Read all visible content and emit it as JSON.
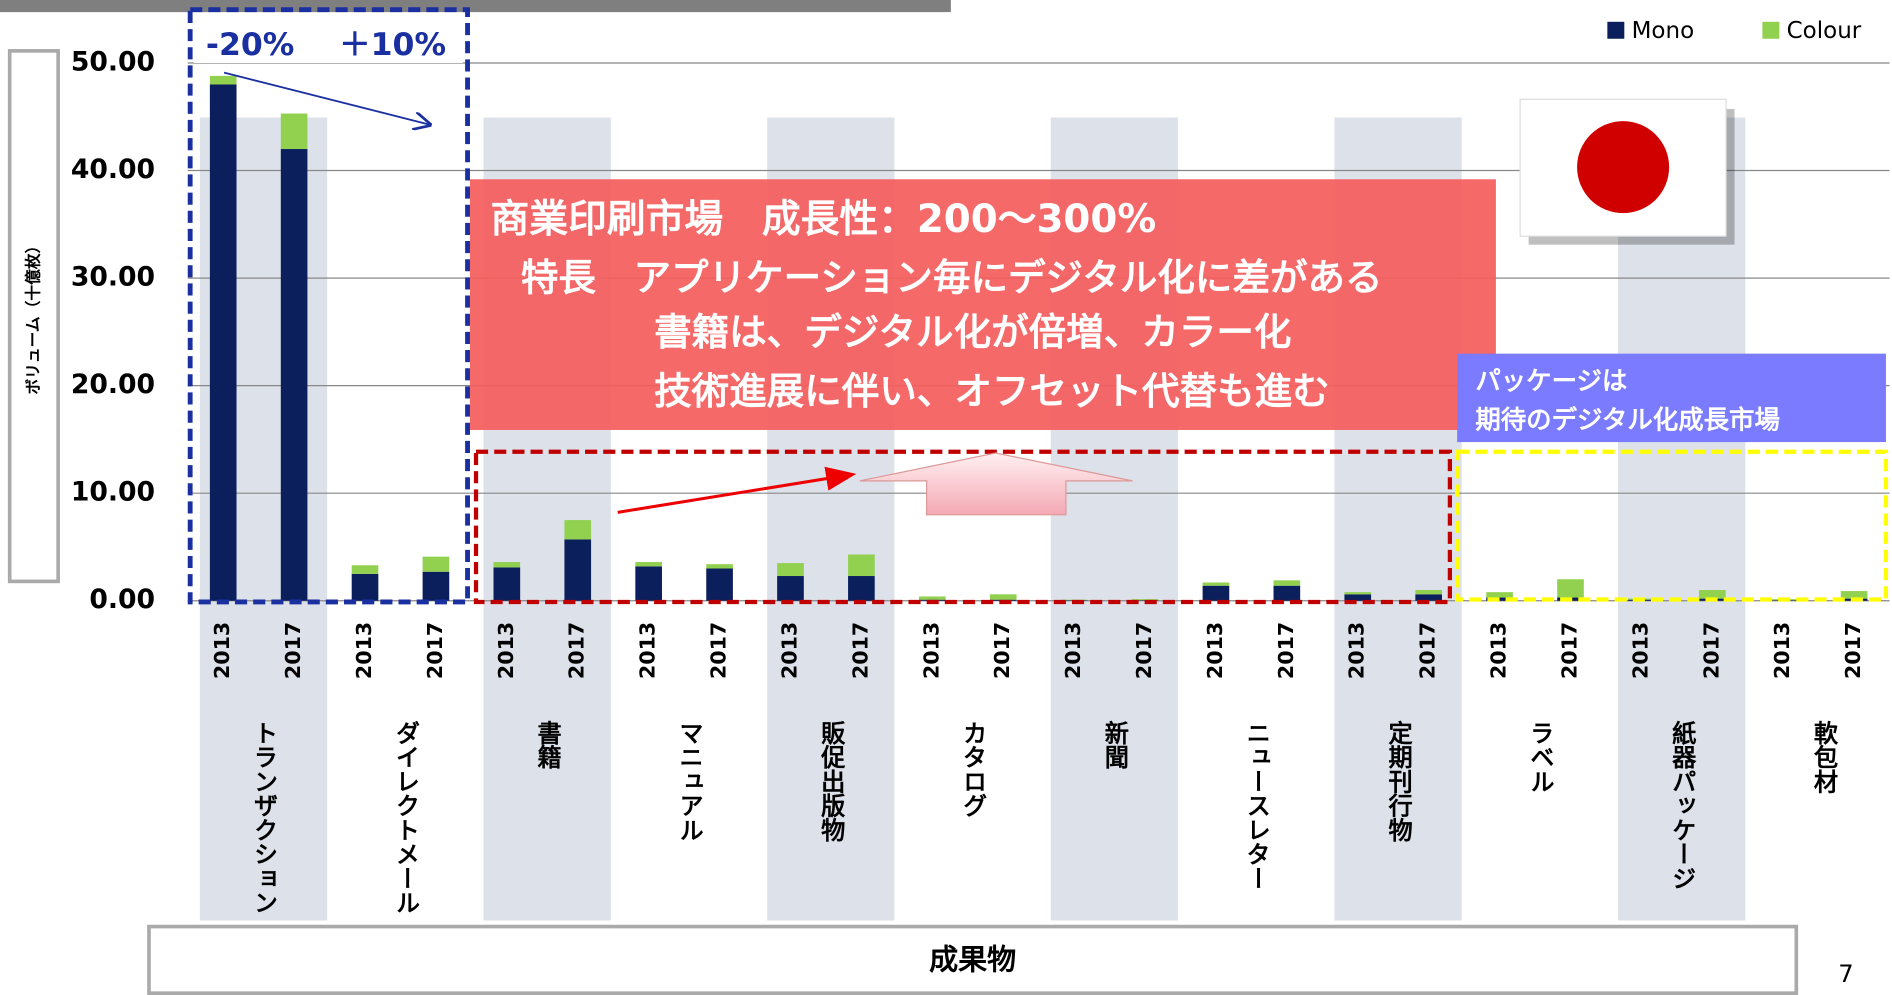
{
  "chart_data": {
    "type": "stacked_bar",
    "y_label": "ボリューム（十億枚）",
    "x_label": "成果物",
    "groups": [
      "トランザクション",
      "ダイレクトメール",
      "書籍",
      "マニュアル",
      "販促出版物",
      "カタログ",
      "新聞",
      "ニュースレター",
      "定期刊行物",
      "ラベル",
      "紙器パッケージ",
      "軟包材"
    ],
    "categories": [
      "2013",
      "2017",
      "2013",
      "2017",
      "2013",
      "2017",
      "2013",
      "2017",
      "2013",
      "2017",
      "2013",
      "2017",
      "2013",
      "2017",
      "2013",
      "2017",
      "2013",
      "2017",
      "2013",
      "2017",
      "2013",
      "2017",
      "2013",
      "2017"
    ],
    "series": [
      {
        "name": "Mono",
        "color": "#0a1f5c",
        "values": [
          48,
          42,
          2.5,
          2.7,
          3.1,
          5.7,
          3.2,
          3.0,
          2.3,
          2.3,
          0.1,
          0.1,
          0.05,
          0.05,
          1.4,
          1.4,
          0.6,
          0.6,
          0.3,
          0.3,
          0.1,
          0.2,
          0.05,
          0.2
        ]
      },
      {
        "name": "Colour",
        "color": "#92d050",
        "values": [
          0.8,
          3.3,
          0.8,
          1.4,
          0.5,
          1.8,
          0.4,
          0.4,
          1.2,
          2.0,
          0.3,
          0.5,
          0.05,
          0.1,
          0.3,
          0.5,
          0.2,
          0.4,
          0.5,
          1.7,
          0.1,
          0.8,
          0.1,
          0.7
        ]
      }
    ],
    "ylim": [
      0,
      50
    ],
    "yticks": [
      {
        "value": 0,
        "label": "0.00"
      },
      {
        "value": 10,
        "label": "10.00"
      },
      {
        "value": 20,
        "label": "20.00"
      },
      {
        "value": 30,
        "label": "30.00"
      },
      {
        "value": 40,
        "label": "40.00"
      },
      {
        "value": 50,
        "label": "50.00"
      }
    ],
    "grid": true,
    "legend": "top-right",
    "annotations": {
      "left_change": "-20%",
      "right_change": "＋10%",
      "red_box": [
        "商業印刷市場　成長性：200～300%",
        "特長　アプリケーション毎にデジタル化に差がある",
        "書籍は、デジタル化が倍増、カラー化",
        "技術進展に伴い、オフセット代替も進む"
      ],
      "blue_box": [
        "パッケージは",
        "期待のデジタル化成長市場"
      ]
    }
  },
  "page_number": "7"
}
